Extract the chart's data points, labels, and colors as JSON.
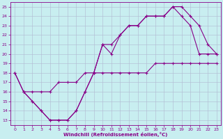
{
  "xlabel": "Windchill (Refroidissement éolien,°C)",
  "xlim": [
    -0.5,
    23.5
  ],
  "ylim": [
    12.5,
    25.5
  ],
  "xticks": [
    0,
    1,
    2,
    3,
    4,
    5,
    6,
    7,
    8,
    9,
    10,
    11,
    12,
    13,
    14,
    15,
    16,
    17,
    18,
    19,
    20,
    21,
    22,
    23
  ],
  "yticks": [
    13,
    14,
    15,
    16,
    17,
    18,
    19,
    20,
    21,
    22,
    23,
    24,
    25
  ],
  "bg_color": "#c8eef0",
  "line_color": "#880088",
  "grid_color": "#b0b8d0",
  "line1_x": [
    0,
    1,
    2,
    3,
    4,
    5,
    6,
    7,
    8,
    9,
    10,
    11,
    12,
    13,
    14,
    15,
    16,
    17,
    18,
    19,
    20,
    21,
    22,
    23
  ],
  "line1_y": [
    18,
    16,
    15,
    14,
    13,
    13,
    13,
    14,
    16,
    18,
    21,
    20,
    22,
    23,
    23,
    24,
    24,
    24,
    25,
    24,
    23,
    20,
    20,
    20
  ],
  "line2_x": [
    0,
    1,
    2,
    3,
    4,
    5,
    6,
    7,
    8,
    9,
    10,
    11,
    12,
    13,
    14,
    15,
    16,
    17,
    18,
    19,
    20,
    21,
    22,
    23
  ],
  "line2_y": [
    18,
    16,
    15,
    14,
    13,
    13,
    13,
    14,
    16,
    18,
    21,
    21,
    22,
    23,
    23,
    24,
    24,
    24,
    25,
    25,
    24,
    23,
    21,
    20
  ],
  "line3_x": [
    1,
    2,
    3,
    4,
    5,
    6,
    7,
    8,
    9,
    10,
    11,
    12,
    13,
    14,
    15,
    16,
    17,
    18,
    19,
    20,
    21,
    22,
    23
  ],
  "line3_y": [
    16,
    16,
    16,
    16,
    17,
    17,
    17,
    18,
    18,
    18,
    18,
    18,
    18,
    18,
    18,
    19,
    19,
    19,
    19,
    19,
    19,
    19,
    19
  ]
}
